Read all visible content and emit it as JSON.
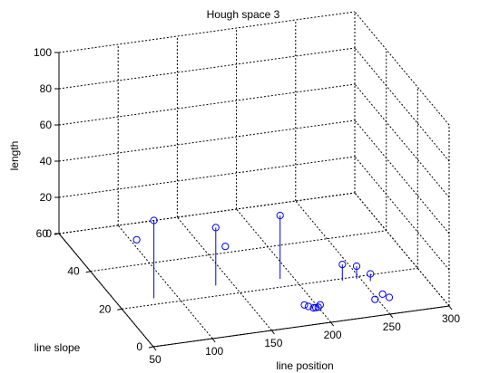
{
  "chart_data": {
    "type": "stem3",
    "title": "Hough space 3",
    "xlabel": "line position",
    "ylabel": "line slope",
    "zlabel": "length",
    "xlim": [
      50,
      300
    ],
    "ylim": [
      0,
      60
    ],
    "zlim": [
      0,
      100
    ],
    "x_ticks": [
      "50",
      "100",
      "150",
      "200",
      "250",
      "300"
    ],
    "y_ticks": [
      "0",
      "20",
      "40",
      "60"
    ],
    "z_ticks": [
      "0",
      "20",
      "40",
      "60",
      "80",
      "100"
    ],
    "grid": true,
    "marker": "circle",
    "series_color": "#0000ff",
    "points": [
      {
        "x": 81,
        "y": 23,
        "z": 43
      },
      {
        "x": 136,
        "y": 25,
        "z": 32
      },
      {
        "x": 105,
        "y": 52,
        "z": 0
      },
      {
        "x": 189,
        "y": 24,
        "z": 35
      },
      {
        "x": 168,
        "y": 43,
        "z": 0
      },
      {
        "x": 191,
        "y": 10,
        "z": 0
      },
      {
        "x": 193,
        "y": 9,
        "z": 0
      },
      {
        "x": 196,
        "y": 8,
        "z": 0
      },
      {
        "x": 198,
        "y": 8,
        "z": 0
      },
      {
        "x": 200,
        "y": 8,
        "z": 0
      },
      {
        "x": 203,
        "y": 9,
        "z": 0
      },
      {
        "x": 235,
        "y": 19,
        "z": 9
      },
      {
        "x": 247,
        "y": 19,
        "z": 7
      },
      {
        "x": 256,
        "y": 17,
        "z": 4
      },
      {
        "x": 248,
        "y": 8,
        "z": 0
      },
      {
        "x": 257,
        "y": 10,
        "z": 0
      },
      {
        "x": 260,
        "y": 8,
        "z": 0
      }
    ]
  }
}
